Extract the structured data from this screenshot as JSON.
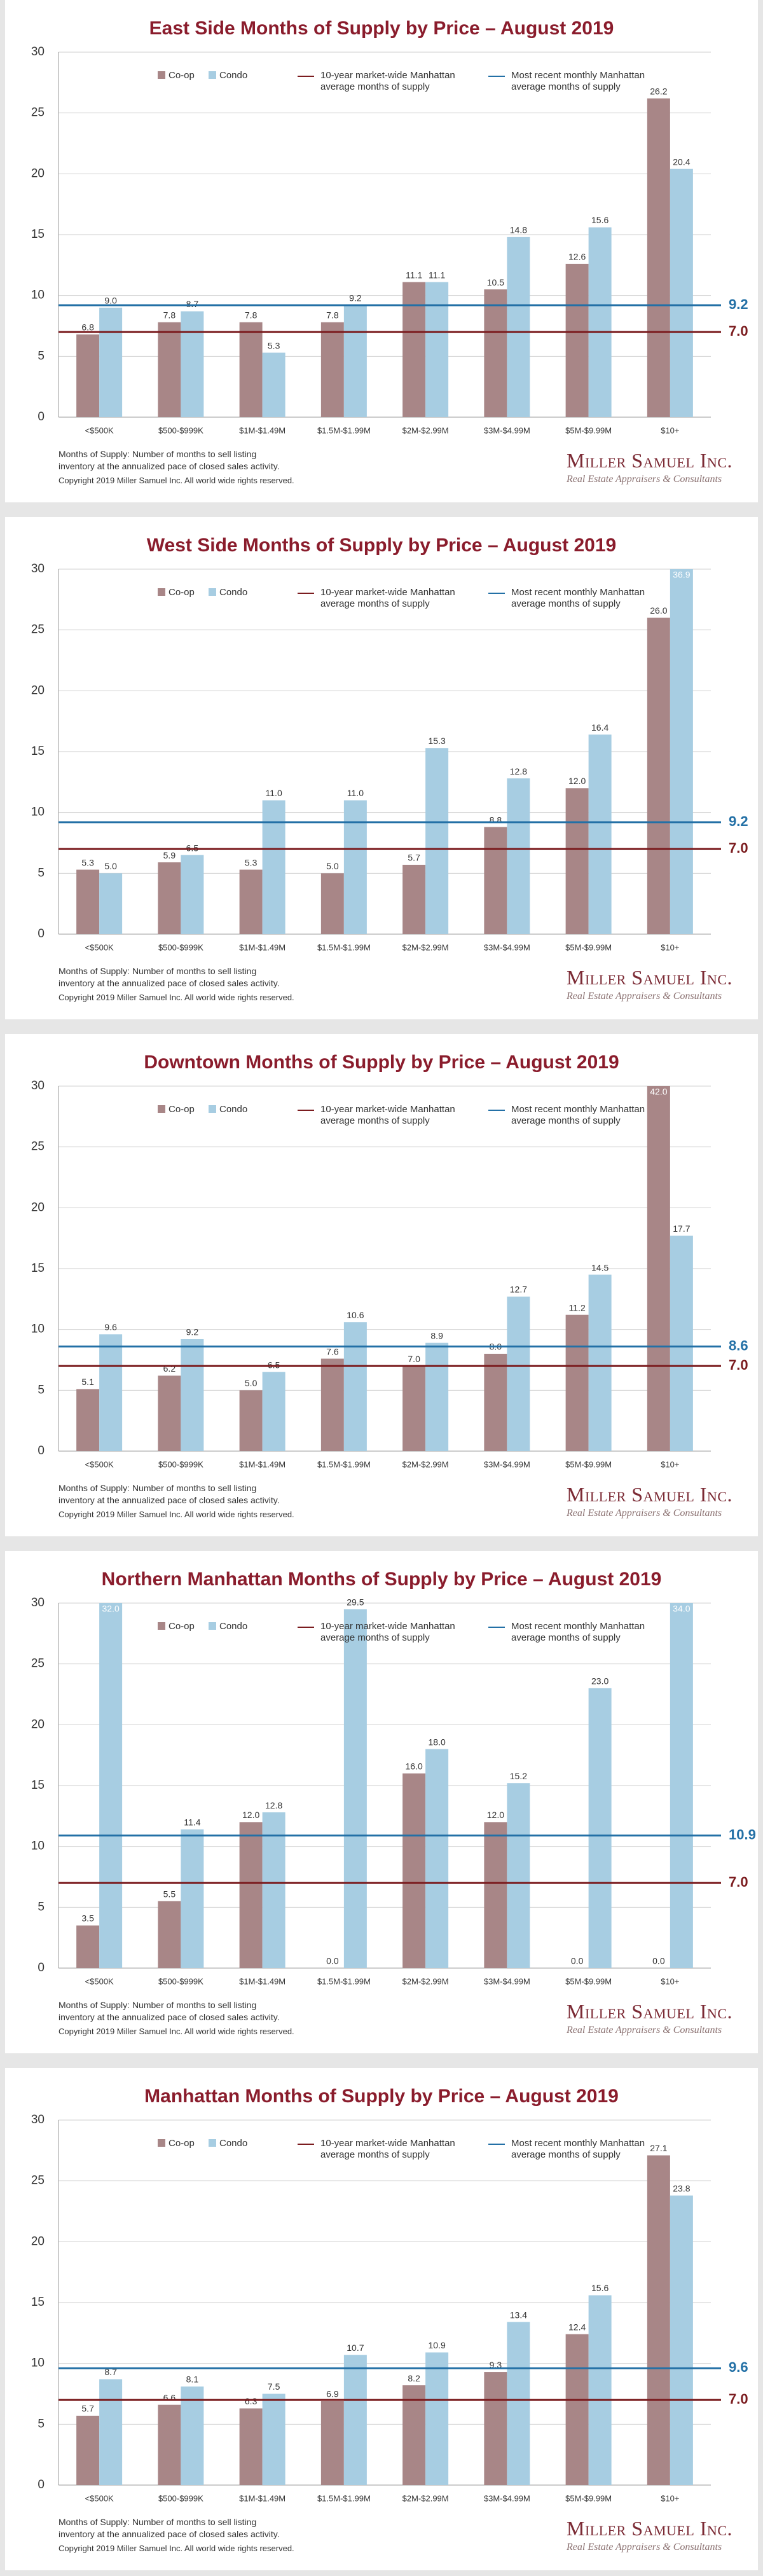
{
  "chart_data": [
    {
      "type": "bar",
      "title": "East Side Months of Supply by Price – August 2019",
      "categories": [
        "<$500K",
        "$500-$999K",
        "$1M-$1.49M",
        "$1.5M-$1.99M",
        "$2M-$2.99M",
        "$3M-$4.99M",
        "$5M-$9.99M",
        "$10+"
      ],
      "series": [
        {
          "name": "Co-op",
          "color": "#a88687",
          "values": [
            6.8,
            7.8,
            7.8,
            7.8,
            11.1,
            10.5,
            12.6,
            26.2
          ],
          "value_labels": [
            "6.8",
            "7.8",
            "7.8",
            "7.8",
            "11.1",
            "10.5",
            "12.6",
            "26.2"
          ]
        },
        {
          "name": "Condo",
          "color": "#a7cde2",
          "values": [
            9.0,
            8.7,
            5.3,
            9.2,
            11.1,
            14.8,
            15.6,
            20.4
          ],
          "value_labels": [
            "9.0",
            "8.7",
            "5.3",
            "9.2",
            "11.1",
            "14.8",
            "15.6",
            "20.4"
          ]
        }
      ],
      "reference_lines": [
        {
          "name": "10-year market-wide Manhattan average months of supply",
          "value": 7.0,
          "value_label": "7.0",
          "color": "#7b1c1f"
        },
        {
          "name": "Most recent monthly Manhattan average months of supply",
          "value": 9.2,
          "value_label": "9.2",
          "color": "#2370a6"
        }
      ],
      "ylim": [
        0,
        30
      ],
      "yticks": [
        0,
        5,
        10,
        15,
        20,
        25,
        30
      ],
      "grid": true,
      "notes": [
        "Months of Supply: Number of months to sell listing",
        "inventory at the annualized pace of closed sales activity."
      ],
      "copyright": "Copyright 2019 Miller Samuel Inc.  All world wide rights reserved.",
      "logo": {
        "name": "Miller Samuel Inc.",
        "tagline": "Real Estate Appraisers & Consultants"
      }
    },
    {
      "type": "bar",
      "title": "West Side Months of Supply by Price – August 2019",
      "categories": [
        "<$500K",
        "$500-$999K",
        "$1M-$1.49M",
        "$1.5M-$1.99M",
        "$2M-$2.99M",
        "$3M-$4.99M",
        "$5M-$9.99M",
        "$10+"
      ],
      "series": [
        {
          "name": "Co-op",
          "color": "#a88687",
          "values": [
            5.3,
            5.9,
            5.3,
            5.0,
            5.7,
            8.8,
            12.0,
            26.0
          ],
          "value_labels": [
            "5.3",
            "5.9",
            "5.3",
            "5.0",
            "5.7",
            "8.8",
            "12.0",
            "26.0"
          ]
        },
        {
          "name": "Condo",
          "color": "#a7cde2",
          "values": [
            5.0,
            6.5,
            11.0,
            11.0,
            15.3,
            12.8,
            16.4,
            36.9
          ],
          "value_labels": [
            "5.0",
            "6.5",
            "11.0",
            "11.0",
            "15.3",
            "12.8",
            "16.4",
            "36.9"
          ]
        }
      ],
      "reference_lines": [
        {
          "name": "10-year market-wide Manhattan average months of supply",
          "value": 7.0,
          "value_label": "7.0",
          "color": "#7b1c1f"
        },
        {
          "name": "Most recent monthly Manhattan average months of supply",
          "value": 9.2,
          "value_label": "9.2",
          "color": "#2370a6"
        }
      ],
      "ylim": [
        0,
        30
      ],
      "yticks": [
        0,
        5,
        10,
        15,
        20,
        25,
        30
      ],
      "grid": true,
      "notes": [
        "Months of Supply: Number of months to sell listing",
        "inventory at the annualized pace of closed sales activity."
      ],
      "copyright": "Copyright 2019 Miller Samuel Inc.  All world wide rights reserved.",
      "logo": {
        "name": "Miller Samuel Inc.",
        "tagline": "Real Estate Appraisers & Consultants"
      }
    },
    {
      "type": "bar",
      "title": "Downtown Months of Supply by Price – August 2019",
      "categories": [
        "<$500K",
        "$500-$999K",
        "$1M-$1.49M",
        "$1.5M-$1.99M",
        "$2M-$2.99M",
        "$3M-$4.99M",
        "$5M-$9.99M",
        "$10+"
      ],
      "series": [
        {
          "name": "Co-op",
          "color": "#a88687",
          "values": [
            5.1,
            6.2,
            5.0,
            7.6,
            7.0,
            8.0,
            11.2,
            42.0
          ],
          "value_labels": [
            "5.1",
            "6.2",
            "5.0",
            "7.6",
            "7.0",
            "8.0",
            "11.2",
            "42.0"
          ]
        },
        {
          "name": "Condo",
          "color": "#a7cde2",
          "values": [
            9.6,
            9.2,
            6.5,
            10.6,
            8.9,
            12.7,
            14.5,
            17.7
          ],
          "value_labels": [
            "9.6",
            "9.2",
            "6.5",
            "10.6",
            "8.9",
            "12.7",
            "14.5",
            "17.7"
          ]
        }
      ],
      "reference_lines": [
        {
          "name": "10-year market-wide Manhattan average months of supply",
          "value": 7.0,
          "value_label": "7.0",
          "color": "#7b1c1f"
        },
        {
          "name": "Most recent monthly Manhattan average months of supply",
          "value": 8.6,
          "value_label": "8.6",
          "color": "#2370a6"
        }
      ],
      "ylim": [
        0,
        30
      ],
      "yticks": [
        0,
        5,
        10,
        15,
        20,
        25,
        30
      ],
      "grid": true,
      "notes": [
        "Months of Supply: Number of months to sell listing",
        "inventory at the annualized pace of closed sales activity."
      ],
      "copyright": "Copyright 2019 Miller Samuel Inc.  All world wide rights reserved.",
      "logo": {
        "name": "Miller Samuel Inc.",
        "tagline": "Real Estate Appraisers & Consultants"
      }
    },
    {
      "type": "bar",
      "title": "Northern Manhattan Months of Supply by Price – August 2019",
      "categories": [
        "<$500K",
        "$500-$999K",
        "$1M-$1.49M",
        "$1.5M-$1.99M",
        "$2M-$2.99M",
        "$3M-$4.99M",
        "$5M-$9.99M",
        "$10+"
      ],
      "series": [
        {
          "name": "Co-op",
          "color": "#a88687",
          "values": [
            3.5,
            5.5,
            12.0,
            0.0,
            16.0,
            12.0,
            0.0,
            0.0
          ],
          "value_labels": [
            "3.5",
            "5.5",
            "12.0",
            "0.0",
            "16.0",
            "12.0",
            "0.0",
            "0.0"
          ]
        },
        {
          "name": "Condo",
          "color": "#a7cde2",
          "values": [
            32.0,
            11.4,
            12.8,
            29.5,
            18.0,
            15.2,
            23.0,
            34.0
          ],
          "value_labels": [
            "32.0",
            "11.4",
            "12.8",
            "29.5",
            "18.0",
            "15.2",
            "23.0",
            "34.0"
          ]
        }
      ],
      "reference_lines": [
        {
          "name": "10-year market-wide Manhattan average months of supply",
          "value": 7.0,
          "value_label": "7.0",
          "color": "#7b1c1f"
        },
        {
          "name": "Most recent monthly Manhattan average months of supply",
          "value": 10.9,
          "value_label": "10.9",
          "color": "#2370a6"
        }
      ],
      "ylim": [
        0,
        30
      ],
      "yticks": [
        0,
        5,
        10,
        15,
        20,
        25,
        30
      ],
      "grid": true,
      "notes": [
        "Months of Supply: Number of months to sell listing",
        "inventory at the annualized pace of closed sales activity."
      ],
      "copyright": "Copyright 2019 Miller Samuel Inc.  All world wide rights reserved.",
      "logo": {
        "name": "Miller Samuel Inc.",
        "tagline": "Real Estate Appraisers & Consultants"
      }
    },
    {
      "type": "bar",
      "title": "Manhattan Months of Supply by Price – August 2019",
      "categories": [
        "<$500K",
        "$500-$999K",
        "$1M-$1.49M",
        "$1.5M-$1.99M",
        "$2M-$2.99M",
        "$3M-$4.99M",
        "$5M-$9.99M",
        "$10+"
      ],
      "series": [
        {
          "name": "Co-op",
          "color": "#a88687",
          "values": [
            5.7,
            6.6,
            6.3,
            6.9,
            8.2,
            9.3,
            12.4,
            27.1
          ],
          "value_labels": [
            "5.7",
            "6.6",
            "6.3",
            "6.9",
            "8.2",
            "9.3",
            "12.4",
            "27.1"
          ]
        },
        {
          "name": "Condo",
          "color": "#a7cde2",
          "values": [
            8.7,
            8.1,
            7.5,
            10.7,
            10.9,
            13.4,
            15.6,
            23.8
          ],
          "value_labels": [
            "8.7",
            "8.1",
            "7.5",
            "10.7",
            "10.9",
            "13.4",
            "15.6",
            "23.8"
          ]
        }
      ],
      "reference_lines": [
        {
          "name": "10-year market-wide Manhattan average months of supply",
          "value": 7.0,
          "value_label": "7.0",
          "color": "#7b1c1f"
        },
        {
          "name": "Most recent monthly Manhattan average months of supply",
          "value": 9.6,
          "value_label": "9.6",
          "color": "#2370a6"
        }
      ],
      "ylim": [
        0,
        30
      ],
      "yticks": [
        0,
        5,
        10,
        15,
        20,
        25,
        30
      ],
      "grid": true,
      "notes": [
        "Months of Supply: Number of months to sell listing",
        "inventory at the annualized pace of closed sales activity."
      ],
      "copyright": "Copyright 2019 Miller Samuel Inc.  All world wide rights reserved.",
      "logo": {
        "name": "Miller Samuel Inc.",
        "tagline": "Real Estate Appraisers & Consultants"
      }
    }
  ]
}
